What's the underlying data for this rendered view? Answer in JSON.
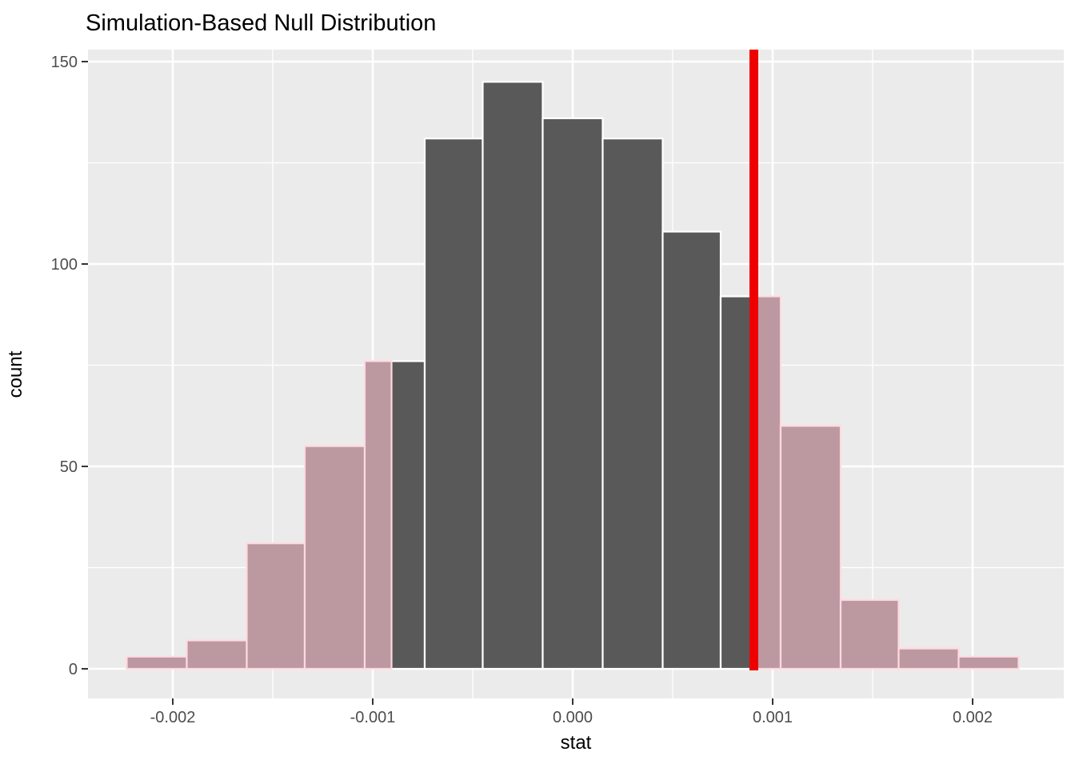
{
  "page": {
    "title": "Simulation-Based Null Distribution"
  },
  "chart_data": {
    "type": "bar",
    "subtype": "histogram",
    "title": "Simulation-Based Null Distribution",
    "xlabel": "stat",
    "ylabel": "count",
    "x_ticks": [
      {
        "value": -0.002,
        "label": "-0.002"
      },
      {
        "value": -0.001,
        "label": "-0.001"
      },
      {
        "value": 0.0,
        "label": "0.000"
      },
      {
        "value": 0.001,
        "label": "0.001"
      },
      {
        "value": 0.002,
        "label": "0.002"
      }
    ],
    "y_ticks": [
      {
        "value": 0,
        "label": "0"
      },
      {
        "value": 50,
        "label": "50"
      },
      {
        "value": 100,
        "label": "100"
      },
      {
        "value": 150,
        "label": "150"
      }
    ],
    "bin_edges": [
      -0.00223,
      -0.00193,
      -0.00163,
      -0.00134,
      -0.00104,
      -0.00074,
      -0.00045,
      -0.00015,
      0.00015,
      0.00045,
      0.00074,
      0.00104,
      0.00134,
      0.00163,
      0.00193,
      0.00223
    ],
    "counts": [
      3,
      7,
      31,
      55,
      76,
      131,
      145,
      136,
      131,
      108,
      92,
      60,
      17,
      5,
      3
    ],
    "total_simulations": 1000,
    "observed_stat": 0.000906,
    "shade_direction": "two-sided",
    "xlim": [
      -0.00242,
      0.00246
    ],
    "ylim": [
      -7.3,
      153.0
    ],
    "grid": true,
    "legend_position": "none",
    "colors": {
      "panel_bg": "#EBEBEB",
      "grid": "#FFFFFF",
      "bar_fill": "#595959",
      "bar_stroke": "#FFFFFF",
      "shade_fill": "#BC98A1",
      "shade_stroke": "#FFD9E0",
      "obs_line": "#EE0000",
      "tick_label": "#4D4D4D",
      "tick_mark": "#333333",
      "text": "#000000"
    }
  }
}
